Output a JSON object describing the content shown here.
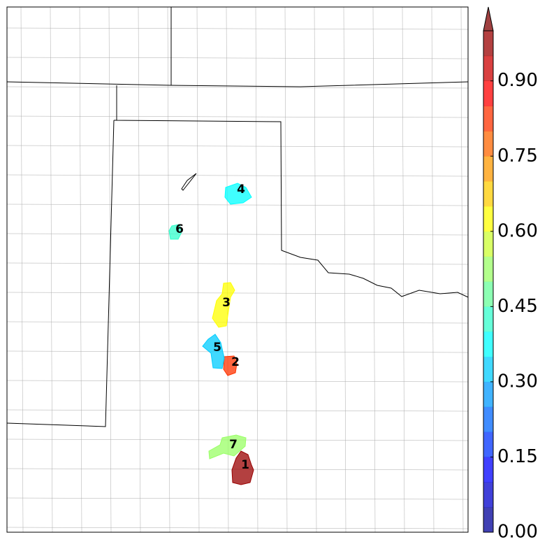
{
  "map": {
    "regions": [
      {
        "label": "1",
        "value": 0.95
      },
      {
        "label": "2",
        "value": 0.8
      },
      {
        "label": "3",
        "value": 0.62
      },
      {
        "label": "4",
        "value": 0.35
      },
      {
        "label": "5",
        "value": 0.33
      },
      {
        "label": "6",
        "value": 0.42
      },
      {
        "label": "7",
        "value": 0.5
      }
    ]
  },
  "colorbar": {
    "lim": [
      0,
      1
    ],
    "bands": 20,
    "extend": "max",
    "ticks": [
      {
        "value": 0,
        "label": "0.00"
      },
      {
        "value": 0.15,
        "label": "0.15"
      },
      {
        "value": 0.3,
        "label": "0.30"
      },
      {
        "value": 0.45,
        "label": "0.45"
      },
      {
        "value": 0.6,
        "label": "0.60"
      },
      {
        "value": 0.75,
        "label": "0.75"
      },
      {
        "value": 0.9,
        "label": "0.90"
      }
    ]
  }
}
